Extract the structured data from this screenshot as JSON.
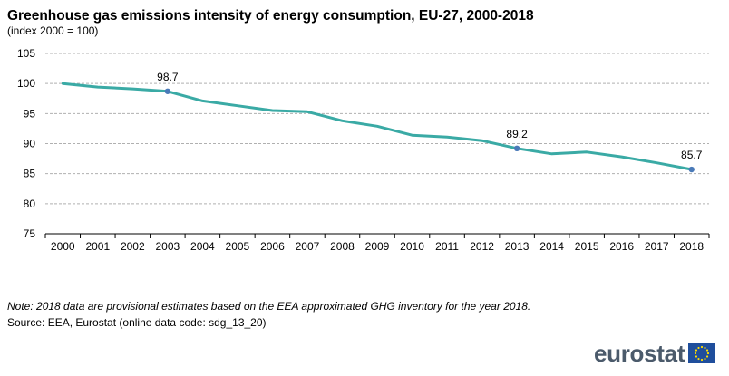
{
  "header": {
    "title": "Greenhouse gas emissions intensity of energy consumption, EU-27, 2000-2018",
    "subtitle": "(index 2000 = 100)"
  },
  "chart_data": {
    "type": "line",
    "categories": [
      "2000",
      "2001",
      "2002",
      "2003",
      "2004",
      "2005",
      "2006",
      "2007",
      "2008",
      "2009",
      "2010",
      "2011",
      "2012",
      "2013",
      "2014",
      "2015",
      "2016",
      "2017",
      "2018"
    ],
    "series": [
      {
        "values": [
          100.0,
          99.4,
          99.1,
          98.7,
          97.1,
          96.3,
          95.5,
          95.3,
          93.8,
          92.9,
          91.4,
          91.1,
          90.5,
          89.2,
          88.3,
          88.6,
          87.8,
          86.8,
          85.7
        ]
      }
    ],
    "data_labels": [
      {
        "category": "2003",
        "value": 98.7,
        "text": "98.7"
      },
      {
        "category": "2013",
        "value": 89.2,
        "text": "89.2"
      },
      {
        "category": "2018",
        "value": 85.7,
        "text": "85.7"
      }
    ],
    "yticks": [
      75,
      80,
      85,
      90,
      95,
      100,
      105
    ],
    "ylim": [
      75,
      105
    ],
    "grid": true,
    "legend": "none",
    "line_color": "#3aaaa5",
    "marker_color": "#4a7ab8"
  },
  "footer": {
    "note": "Note: 2018 data are provisional estimates based on the EEA approximated GHG inventory for the year 2018.",
    "source": "Source: EEA, Eurostat (online data code: sdg_13_20)"
  },
  "logo": {
    "text": "eurostat",
    "flag_color": "#1f4e9c",
    "star_color": "#ffdd00"
  }
}
